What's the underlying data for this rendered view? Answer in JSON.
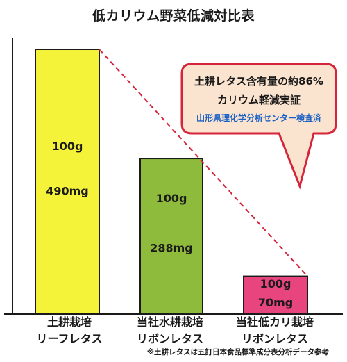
{
  "chart_data": {
    "type": "bar",
    "title": "低カリウム野菜低減対比表",
    "categories": [
      [
        "土耕栽培",
        "リーフレタス"
      ],
      [
        "当社水耕栽培",
        "リボンレタス"
      ],
      [
        "当社低カリ栽培",
        "リボンレタス"
      ]
    ],
    "values": [
      490,
      288,
      70
    ],
    "unit": "mg",
    "data_labels": [
      {
        "weight": "100g",
        "amount": "490mg"
      },
      {
        "weight": "100g",
        "amount": "288mg"
      },
      {
        "weight": "100g",
        "amount": "70mg"
      }
    ],
    "colors": [
      "#f5f23a",
      "#8fbb3d",
      "#e8457e"
    ],
    "trend_line_color": "#d4253a",
    "ylim": [
      0,
      490
    ],
    "grid": false
  },
  "callout": {
    "line1": "土耕レタス含有量の約86%",
    "line2": "カリウム軽減実証",
    "line3": "山形県理化学分析センター検査済",
    "border_color": "#d4253a",
    "fill_color": "#fbe4cf",
    "line3_color": "#1c61c4"
  },
  "footnote": "※土耕レタスは五訂日本食品標準成分表分析データ参考"
}
